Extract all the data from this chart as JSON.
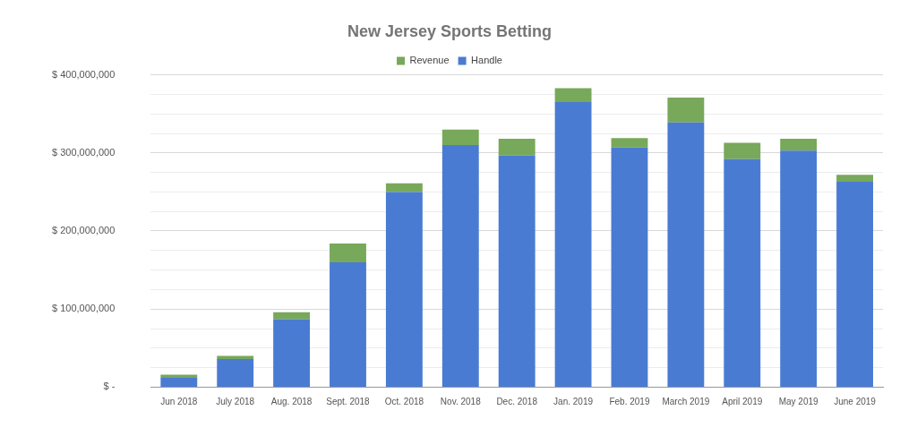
{
  "chart_data": {
    "type": "bar",
    "title": "New Jersey Sports Betting",
    "stacked": true,
    "legend": "top",
    "grid": "y",
    "categories": [
      "Jun 2018",
      "July 2018",
      "Aug. 2018",
      "Sept. 2018",
      "Oct. 2018",
      "Nov. 2018",
      "Dec. 2018",
      "Jan. 2019",
      "Feb. 2019",
      "March 2019",
      "April 2019",
      "May 2019",
      "June 2019"
    ],
    "series": [
      {
        "name": "Revenue",
        "color": "#78a85a",
        "values": [
          4000000,
          4000000,
          9000000,
          24000000,
          11000000,
          20000000,
          21000000,
          18000000,
          12000000,
          32000000,
          21000000,
          15000000,
          9000000
        ]
      },
      {
        "name": "Handle",
        "color": "#4a7bd3",
        "values": [
          12000000,
          36000000,
          87000000,
          160000000,
          250000000,
          310000000,
          297000000,
          365000000,
          307000000,
          339000000,
          292000000,
          303000000,
          263000000
        ]
      }
    ],
    "ylim": [
      0,
      400000000
    ],
    "yticks": [
      {
        "value": 0,
        "label": "$ -"
      },
      {
        "value": 25000000,
        "label": null
      },
      {
        "value": 50000000,
        "label": null
      },
      {
        "value": 75000000,
        "label": null
      },
      {
        "value": 100000000,
        "label": "$ 100,000,000"
      },
      {
        "value": 125000000,
        "label": null
      },
      {
        "value": 150000000,
        "label": null
      },
      {
        "value": 175000000,
        "label": null
      },
      {
        "value": 200000000,
        "label": "$ 200,000,000"
      },
      {
        "value": 225000000,
        "label": null
      },
      {
        "value": 250000000,
        "label": null
      },
      {
        "value": 275000000,
        "label": null
      },
      {
        "value": 300000000,
        "label": "$ 300,000,000"
      },
      {
        "value": 325000000,
        "label": null
      },
      {
        "value": 350000000,
        "label": null
      },
      {
        "value": 375000000,
        "label": null
      },
      {
        "value": 400000000,
        "label": "$ 400,000,000"
      }
    ]
  }
}
